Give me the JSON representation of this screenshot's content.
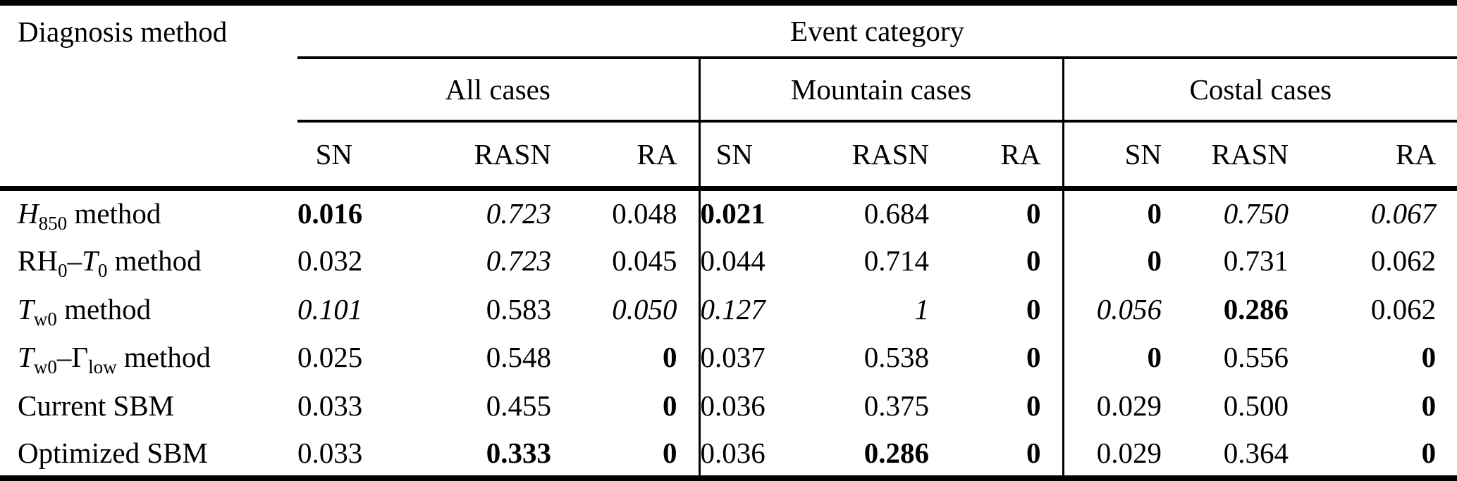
{
  "page": {
    "background_color": "#ffffff",
    "text_color": "#000000",
    "rule_color": "#000000"
  },
  "table": {
    "corner_header": "Diagnosis method",
    "span_header": "Event category",
    "groups": [
      {
        "label": "All cases",
        "subcolumns": [
          "SN",
          "RASN",
          "RA"
        ]
      },
      {
        "label": "Mountain cases",
        "subcolumns": [
          "SN",
          "RASN",
          "RA"
        ]
      },
      {
        "label": "Costal cases",
        "subcolumns": [
          "SN",
          "RASN",
          "RA"
        ]
      }
    ],
    "rows": [
      {
        "label": [
          {
            "text": "H",
            "italic": true
          },
          {
            "text": "850",
            "subscript": true
          },
          {
            "text": " method"
          }
        ],
        "cells": [
          {
            "v": "0.016",
            "style": "bold"
          },
          {
            "v": "0.723",
            "style": "italic"
          },
          {
            "v": "0.048",
            "style": "normal"
          },
          {
            "v": "0.021",
            "style": "bold"
          },
          {
            "v": "0.684",
            "style": "normal"
          },
          {
            "v": "0",
            "style": "bold"
          },
          {
            "v": "0",
            "style": "bold"
          },
          {
            "v": "0.750",
            "style": "italic"
          },
          {
            "v": "0.067",
            "style": "italic"
          }
        ]
      },
      {
        "label": [
          {
            "text": "RH"
          },
          {
            "text": "0",
            "subscript": true
          },
          {
            "text": "–"
          },
          {
            "text": "T",
            "italic": true
          },
          {
            "text": "0",
            "subscript": true
          },
          {
            "text": " method"
          }
        ],
        "cells": [
          {
            "v": "0.032",
            "style": "normal"
          },
          {
            "v": "0.723",
            "style": "italic"
          },
          {
            "v": "0.045",
            "style": "normal"
          },
          {
            "v": "0.044",
            "style": "normal"
          },
          {
            "v": "0.714",
            "style": "normal"
          },
          {
            "v": "0",
            "style": "bold"
          },
          {
            "v": "0",
            "style": "bold"
          },
          {
            "v": "0.731",
            "style": "normal"
          },
          {
            "v": "0.062",
            "style": "normal"
          }
        ]
      },
      {
        "label": [
          {
            "text": "T",
            "italic": true
          },
          {
            "text": "w0",
            "subscript": true
          },
          {
            "text": " method"
          }
        ],
        "cells": [
          {
            "v": "0.101",
            "style": "italic"
          },
          {
            "v": "0.583",
            "style": "normal"
          },
          {
            "v": "0.050",
            "style": "italic"
          },
          {
            "v": "0.127",
            "style": "italic"
          },
          {
            "v": "1",
            "style": "italic"
          },
          {
            "v": "0",
            "style": "bold"
          },
          {
            "v": "0.056",
            "style": "italic"
          },
          {
            "v": "0.286",
            "style": "bold"
          },
          {
            "v": "0.062",
            "style": "normal"
          }
        ]
      },
      {
        "label": [
          {
            "text": "T",
            "italic": true
          },
          {
            "text": "w0",
            "subscript": true
          },
          {
            "text": "–Γ"
          },
          {
            "text": "low",
            "subscript": true
          },
          {
            "text": " method"
          }
        ],
        "cells": [
          {
            "v": "0.025",
            "style": "normal"
          },
          {
            "v": "0.548",
            "style": "normal"
          },
          {
            "v": "0",
            "style": "bold"
          },
          {
            "v": "0.037",
            "style": "normal"
          },
          {
            "v": "0.538",
            "style": "normal"
          },
          {
            "v": "0",
            "style": "bold"
          },
          {
            "v": "0",
            "style": "bold"
          },
          {
            "v": "0.556",
            "style": "normal"
          },
          {
            "v": "0",
            "style": "bold"
          }
        ]
      },
      {
        "label": [
          {
            "text": "Current SBM"
          }
        ],
        "cells": [
          {
            "v": "0.033",
            "style": "normal"
          },
          {
            "v": "0.455",
            "style": "normal"
          },
          {
            "v": "0",
            "style": "bold"
          },
          {
            "v": "0.036",
            "style": "normal"
          },
          {
            "v": "0.375",
            "style": "normal"
          },
          {
            "v": "0",
            "style": "bold"
          },
          {
            "v": "0.029",
            "style": "normal"
          },
          {
            "v": "0.500",
            "style": "normal"
          },
          {
            "v": "0",
            "style": "bold"
          }
        ]
      },
      {
        "label": [
          {
            "text": "Optimized SBM"
          }
        ],
        "cells": [
          {
            "v": "0.033",
            "style": "normal"
          },
          {
            "v": "0.333",
            "style": "bold"
          },
          {
            "v": "0",
            "style": "bold"
          },
          {
            "v": "0.036",
            "style": "normal"
          },
          {
            "v": "0.286",
            "style": "bold"
          },
          {
            "v": "0",
            "style": "bold"
          },
          {
            "v": "0.029",
            "style": "normal"
          },
          {
            "v": "0.364",
            "style": "normal"
          },
          {
            "v": "0",
            "style": "bold"
          }
        ]
      }
    ]
  }
}
